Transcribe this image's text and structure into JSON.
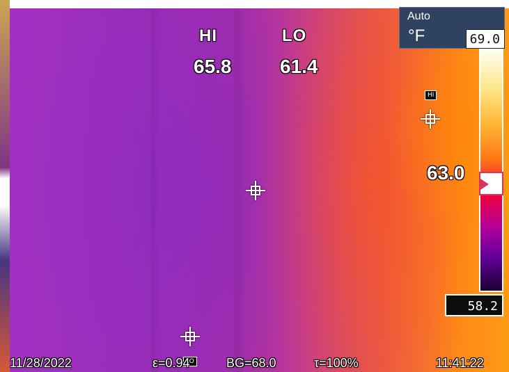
{
  "header": {
    "mode_label": "Auto",
    "unit_label": "°F",
    "range_max": "69.0"
  },
  "readouts": {
    "hi_label": "HI",
    "lo_label": "LO",
    "hi_value": "65.8",
    "lo_value": "61.4"
  },
  "scale": {
    "current_value": "63.0",
    "range_min": "58.2",
    "palette": [
      "#fffef0",
      "#ffe78a",
      "#ffb83a",
      "#ff7a16",
      "#f4003f",
      "#b2009a",
      "#62009a",
      "#1a0032"
    ],
    "accent_marker_color": "#d9345c"
  },
  "markers": {
    "hi_tag": "HI",
    "lo_tag": "LO"
  },
  "footer": {
    "date": "11/28/2022",
    "emissivity": "ε=0.94",
    "background_temp": "BG=68.0",
    "transmission": "τ=100%",
    "time": "11:41:22"
  },
  "icons": {
    "crosshair": "crosshair-icon",
    "scale_pointer": "triangle-pointer-icon"
  }
}
